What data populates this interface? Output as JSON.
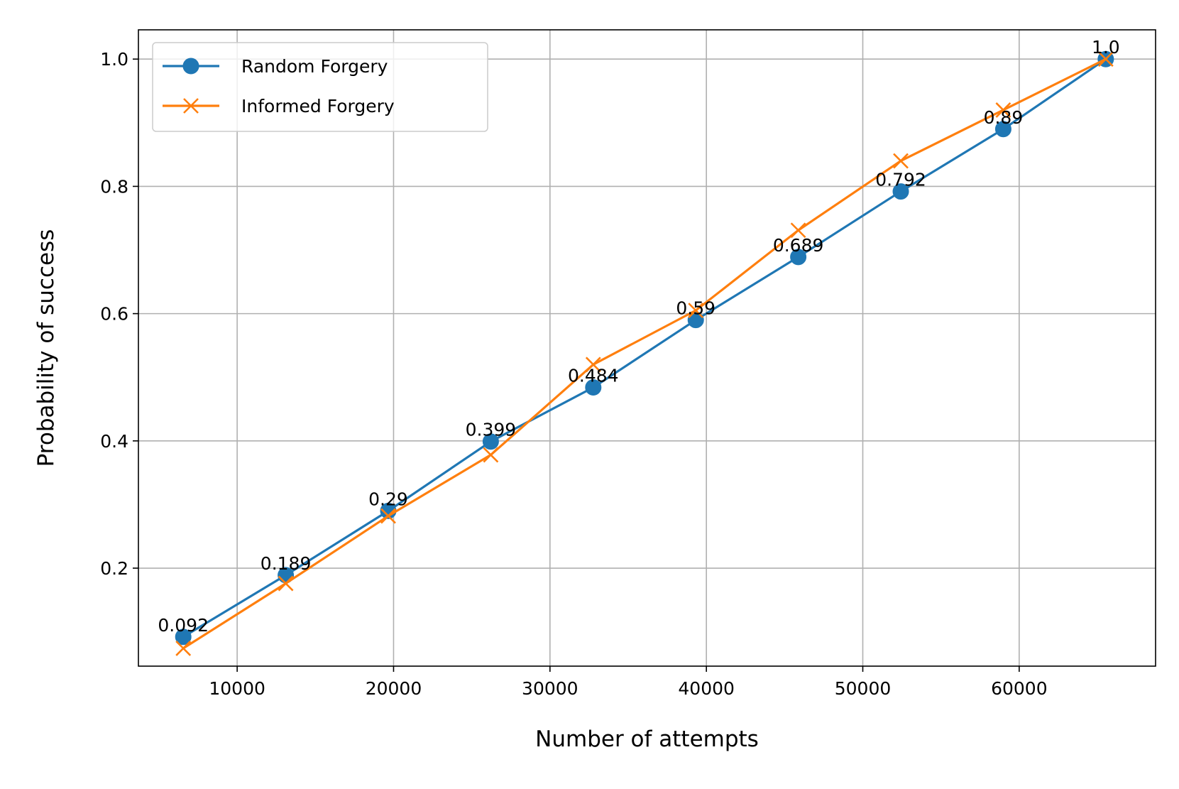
{
  "chart_data": {
    "type": "line",
    "title": "",
    "xlabel": "Number of attempts",
    "ylabel": "Probability of success",
    "xlim": [
      3686,
      68720
    ],
    "ylim": [
      0.046,
      1.046
    ],
    "xticks": [
      10000,
      20000,
      30000,
      40000,
      50000,
      60000
    ],
    "yticks": [
      0.2,
      0.4,
      0.6,
      0.8,
      1.0
    ],
    "xtick_labels": [
      "10000",
      "20000",
      "30000",
      "40000",
      "50000",
      "60000"
    ],
    "ytick_labels": [
      "0.2",
      "0.4",
      "0.6",
      "0.8",
      "1.0"
    ],
    "grid": true,
    "legend_position": "top-left",
    "x": [
      6554,
      13107,
      19661,
      26214,
      32768,
      39322,
      45875,
      52429,
      58982,
      65536
    ],
    "series": [
      {
        "name": "Random Forgery",
        "color": "#1f77b4",
        "marker": "circle",
        "values": [
          0.092,
          0.189,
          0.29,
          0.399,
          0.484,
          0.59,
          0.689,
          0.792,
          0.89,
          1.0
        ]
      },
      {
        "name": "Informed Forgery",
        "color": "#ff7f0e",
        "marker": "x",
        "values": [
          0.074,
          0.176,
          0.282,
          0.378,
          0.52,
          0.605,
          0.731,
          0.84,
          0.92,
          1.0
        ]
      }
    ],
    "data_labels": [
      "0.092",
      "0.189",
      "0.29",
      "0.399",
      "0.484",
      "0.59",
      "0.689",
      "0.792",
      "0.89",
      "1.0"
    ]
  }
}
